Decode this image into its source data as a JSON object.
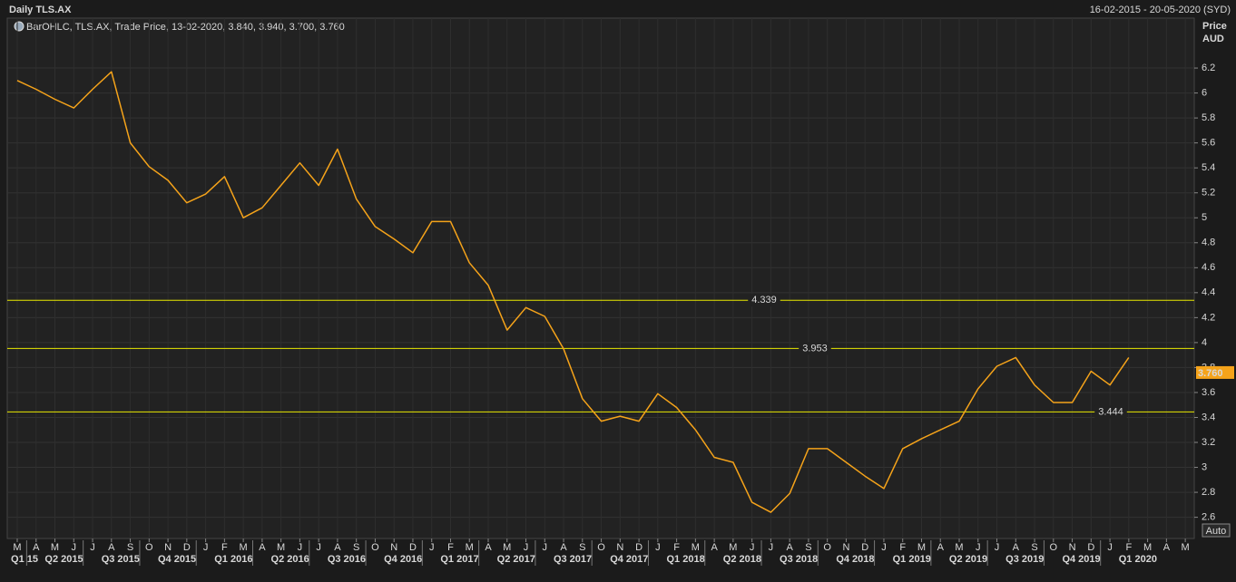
{
  "header": {
    "title": "Daily TLS.AX",
    "date_range": "16-02-2015 - 20-05-2020 (SYD)"
  },
  "chart_data": {
    "type": "line",
    "legend": "BarOHLC, TLS.AX, Trade Price, 13-02-2020, 3.840, 3.940, 3.700, 3.760",
    "ylabel": "Price",
    "yunit": "AUD",
    "x": [
      "2015-03",
      "2015-04",
      "2015-05",
      "2015-06",
      "2015-07",
      "2015-08",
      "2015-09",
      "2015-10",
      "2015-11",
      "2015-12",
      "2016-01",
      "2016-02",
      "2016-03",
      "2016-04",
      "2016-05",
      "2016-06",
      "2016-07",
      "2016-08",
      "2016-09",
      "2016-10",
      "2016-11",
      "2016-12",
      "2017-01",
      "2017-02",
      "2017-03",
      "2017-04",
      "2017-05",
      "2017-06",
      "2017-07",
      "2017-08",
      "2017-09",
      "2017-10",
      "2017-11",
      "2017-12",
      "2018-01",
      "2018-02",
      "2018-03",
      "2018-04",
      "2018-05",
      "2018-06",
      "2018-07",
      "2018-08",
      "2018-09",
      "2018-10",
      "2018-11",
      "2018-12",
      "2019-01",
      "2019-02",
      "2019-03",
      "2019-04",
      "2019-05",
      "2019-06",
      "2019-07",
      "2019-08",
      "2019-09",
      "2019-10",
      "2019-11",
      "2019-12",
      "2020-01",
      "2020-02"
    ],
    "series": [
      {
        "color": "#f5a31a",
        "values": [
          6.1,
          6.03,
          5.95,
          5.88,
          6.03,
          6.17,
          5.6,
          5.41,
          5.3,
          5.12,
          5.19,
          5.33,
          5.0,
          5.08,
          5.26,
          5.44,
          5.26,
          5.55,
          5.15,
          4.93,
          4.83,
          4.72,
          4.97,
          4.97,
          4.64,
          4.46,
          4.1,
          4.28,
          4.21,
          3.95,
          3.55,
          3.37,
          3.41,
          3.37,
          3.59,
          3.48,
          3.3,
          3.08,
          3.04,
          2.72,
          2.64,
          2.79,
          3.15,
          3.15,
          3.04,
          2.93,
          2.83,
          3.15,
          3.23,
          3.3,
          3.37,
          3.63,
          3.81,
          3.88,
          3.66,
          3.52,
          3.52,
          3.77,
          3.66,
          3.88
        ]
      }
    ],
    "ylim": [
      2.43,
      6.6
    ],
    "yticks": [
      2.6,
      2.8,
      3,
      3.2,
      3.4,
      3.6,
      3.8,
      4,
      4.2,
      4.4,
      4.6,
      4.8,
      5,
      5.2,
      5.4,
      5.6,
      5.8,
      6,
      6.2
    ],
    "grid": true,
    "month_labels": [
      "M",
      "A",
      "M",
      "J",
      "J",
      "A",
      "S",
      "O",
      "N",
      "D",
      "J",
      "F",
      "M",
      "A",
      "M",
      "J",
      "J",
      "A",
      "S",
      "O",
      "N",
      "D",
      "J",
      "F",
      "M",
      "A",
      "M",
      "J",
      "J",
      "A",
      "S",
      "O",
      "N",
      "D",
      "J",
      "F",
      "M",
      "A",
      "M",
      "J",
      "J",
      "A",
      "S",
      "O",
      "N",
      "D",
      "J",
      "F",
      "M",
      "A",
      "M",
      "J",
      "J",
      "A",
      "S",
      "O",
      "N",
      "D",
      "J",
      "F",
      "M",
      "A",
      "M"
    ],
    "quarter_labels": [
      "Q1 15",
      "Q2 2015",
      "Q3 2015",
      "Q4 2015",
      "Q1 2016",
      "Q2 2016",
      "Q3 2016",
      "Q4 2016",
      "Q1 2017",
      "Q2 2017",
      "Q3 2017",
      "Q4 2017",
      "Q1 2018",
      "Q2 2018",
      "Q3 2018",
      "Q4 2018",
      "Q1 2019",
      "Q2 2019",
      "Q3 2019",
      "Q4 2019",
      "Q1 2020"
    ],
    "reference_lines": {
      "color": "#e8e800",
      "values": [
        4.339,
        3.953,
        3.444
      ]
    },
    "last_price": {
      "value": 3.76,
      "label": "3.760",
      "color": "#f5a31a"
    }
  },
  "controls": {
    "auto": "Auto"
  }
}
